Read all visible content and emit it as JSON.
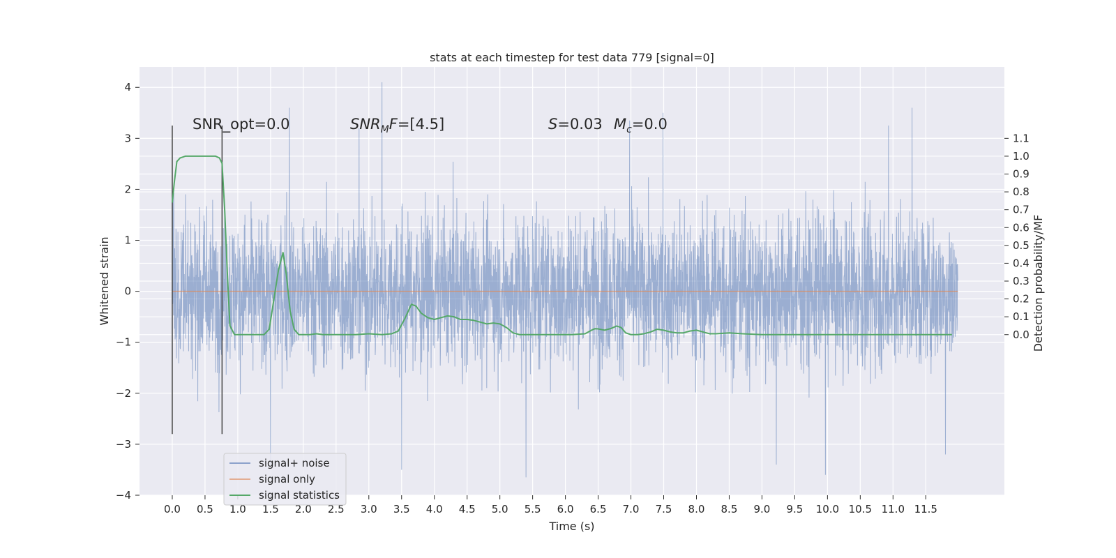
{
  "chart_data": {
    "type": "line",
    "title": "stats at each timestep for test data 779 [signal=0]",
    "xlabel": "Time (s)",
    "ylabel_left": "Whitened strain",
    "ylabel_right": "Detection probability/MF",
    "xlim": [
      -0.5,
      12.7
    ],
    "ylim_left": [
      -4,
      4.4
    ],
    "ylim_right": [
      -0.9,
      1.5
    ],
    "x_ticks": [
      0.0,
      0.5,
      1.0,
      1.5,
      2.0,
      2.5,
      3.0,
      3.5,
      4.0,
      4.5,
      5.0,
      5.5,
      6.0,
      6.5,
      7.0,
      7.5,
      8.0,
      8.5,
      9.0,
      9.5,
      10.0,
      10.5,
      11.0,
      11.5
    ],
    "x_tick_labels": [
      "0.0",
      "0.5",
      "1.0",
      "1.5",
      "2.0",
      "2.5",
      "3.0",
      "3.5",
      "4.0",
      "4.5",
      "5.0",
      "5.5",
      "6.0",
      "6.5",
      "7.0",
      "7.5",
      "8.0",
      "8.5",
      "9.0",
      "9.5",
      "10.0",
      "10.5",
      "11.0",
      "11.5"
    ],
    "y_left_ticks": [
      -4,
      -3,
      -2,
      -1,
      0,
      1,
      2,
      3,
      4
    ],
    "y_left_tick_labels": [
      "−4",
      "−3",
      "−2",
      "−1",
      "0",
      "1",
      "2",
      "3",
      "4"
    ],
    "y_right_ticks": [
      0.0,
      0.1,
      0.2,
      0.3,
      0.4,
      0.5,
      0.6,
      0.7,
      0.8,
      0.9,
      1.0,
      1.1
    ],
    "y_right_tick_labels": [
      "0.0",
      "0.1",
      "0.2",
      "0.3",
      "0.4",
      "0.5",
      "0.6",
      "0.7",
      "0.8",
      "0.9",
      "1.0",
      "1.1"
    ],
    "grid": true,
    "legend_position": "lower-left",
    "series": [
      {
        "name": "signal+ noise",
        "axis": "left",
        "color": "#4c72b0",
        "x_range": [
          0.0,
          11.99
        ],
        "typical_band": [
          -1.4,
          1.4
        ],
        "notable_peaks": [
          {
            "x": 1.79,
            "y": 3.6
          },
          {
            "x": 3.2,
            "y": 4.1
          },
          {
            "x": 2.85,
            "y": 3.2
          },
          {
            "x": 7.49,
            "y": 3.5
          },
          {
            "x": 11.29,
            "y": 3.6
          },
          {
            "x": 10.93,
            "y": 3.25
          },
          {
            "x": 6.98,
            "y": 3.35
          },
          {
            "x": 1.5,
            "y": -3.4
          },
          {
            "x": 3.5,
            "y": -3.5
          },
          {
            "x": 5.4,
            "y": -3.65
          },
          {
            "x": 9.97,
            "y": -3.6
          },
          {
            "x": 11.8,
            "y": -3.2
          },
          {
            "x": 9.22,
            "y": -3.4
          }
        ]
      },
      {
        "name": "signal only",
        "axis": "left",
        "color": "#dd8452",
        "x": [
          0.0,
          11.99
        ],
        "y": [
          0.0,
          0.0
        ]
      },
      {
        "name": "signal statistics",
        "axis": "right",
        "color": "#55a868",
        "x": [
          0.0,
          0.03,
          0.07,
          0.12,
          0.2,
          0.3,
          0.4,
          0.5,
          0.6,
          0.66,
          0.72,
          0.76,
          0.8,
          0.84,
          0.88,
          0.95,
          1.0,
          1.1,
          1.2,
          1.3,
          1.4,
          1.48,
          1.56,
          1.62,
          1.69,
          1.74,
          1.8,
          1.86,
          1.93,
          2.0,
          2.1,
          2.2,
          2.3,
          2.4,
          2.6,
          2.8,
          3.0,
          3.2,
          3.35,
          3.45,
          3.55,
          3.65,
          3.72,
          3.8,
          3.9,
          4.0,
          4.1,
          4.2,
          4.3,
          4.4,
          4.5,
          4.6,
          4.7,
          4.8,
          4.9,
          5.0,
          5.1,
          5.2,
          5.3,
          5.4,
          5.5,
          5.7,
          5.9,
          6.1,
          6.3,
          6.4,
          6.45,
          6.5,
          6.6,
          6.7,
          6.78,
          6.85,
          6.92,
          7.0,
          7.1,
          7.2,
          7.3,
          7.4,
          7.5,
          7.6,
          7.7,
          7.8,
          7.9,
          8.0,
          8.1,
          8.2,
          8.3,
          8.5,
          8.7,
          9.0,
          9.3,
          9.6,
          10.0,
          10.5,
          11.0,
          11.5,
          11.9
        ],
        "y": [
          0.74,
          0.85,
          0.97,
          0.99,
          1.0,
          1.0,
          1.0,
          1.0,
          1.0,
          1.0,
          0.99,
          0.96,
          0.7,
          0.35,
          0.05,
          0.0,
          0.0,
          0.0,
          0.0,
          0.0,
          0.0,
          0.03,
          0.22,
          0.36,
          0.46,
          0.34,
          0.13,
          0.03,
          0.0,
          0.0,
          0.0,
          0.005,
          0.0,
          0.0,
          0.0,
          0.0,
          0.005,
          0.0,
          0.005,
          0.02,
          0.09,
          0.17,
          0.16,
          0.12,
          0.095,
          0.085,
          0.095,
          0.105,
          0.1,
          0.085,
          0.085,
          0.08,
          0.07,
          0.06,
          0.065,
          0.06,
          0.04,
          0.01,
          0.0,
          0.0,
          0.0,
          0.0,
          0.0,
          0.0,
          0.005,
          0.025,
          0.033,
          0.032,
          0.025,
          0.035,
          0.048,
          0.04,
          0.01,
          0.0,
          0.0,
          0.005,
          0.015,
          0.03,
          0.025,
          0.015,
          0.01,
          0.01,
          0.02,
          0.025,
          0.015,
          0.005,
          0.005,
          0.01,
          0.005,
          0.0,
          0.0,
          0.0,
          0.0,
          0.0,
          0.0,
          0.0,
          0.0
        ]
      }
    ],
    "vertical_lines": [
      {
        "x": 0.0,
        "y_bottom": -2.8,
        "y_top": 3.25,
        "color": "#444444"
      },
      {
        "x": 0.76,
        "y_bottom": -2.8,
        "y_top": 3.25,
        "color": "#444444"
      }
    ],
    "annotations": [
      {
        "text": "SNR_opt=0.0",
        "x": 0.2,
        "y": 3.25
      },
      {
        "text": "SNR_MF=[4.5]",
        "x": 2.6,
        "y": 3.25
      },
      {
        "text": "S=0.03",
        "x": 5.6,
        "y": 3.25
      },
      {
        "text": "M_c=0.0",
        "x": 6.6,
        "y": 3.25
      }
    ]
  }
}
